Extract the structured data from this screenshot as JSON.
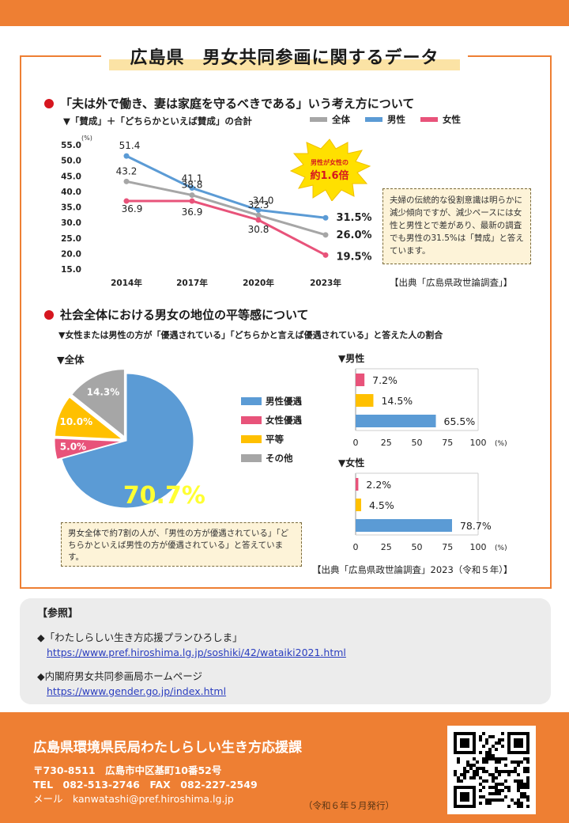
{
  "title": "広島県　男女共同参画に関するデータ",
  "section1": {
    "heading": "「夫は外で働き、妻は家庭を守るべきである」いう考え方について",
    "subheading": "▼「賛成」＋「どちらかといえば賛成」の合計",
    "callout_line1": "男性が女性の",
    "callout_line2": "約1.6倍",
    "note": "夫婦の伝統的な役割意識は明らかに減少傾向ですが、減少ペースには女性と男性とで差があり、最新の調査でも男性の31.5%は「賛成」と答えています。",
    "source": "【出典「広島県政世論調査」】"
  },
  "section2": {
    "heading": "社会全体における男女の地位の平等感について",
    "subheading": "▼女性または男性の方が「優遇されている」「どちらかと言えば優遇されている」と答えた人の割合",
    "pie_label": "▼全体",
    "note": "男女全体で約7割の人が、「男性の方が優遇されている」「どちらかといえば男性の方が優遇されている」と答えています。",
    "source": "【出典「広島県政世論調査」2023（令和５年）】"
  },
  "colors": {
    "accent": "#ee7f33",
    "zentai": "#a6a6a6",
    "male": "#5b9bd5",
    "female": "#e8537a",
    "equal": "#ffc000",
    "other": "#a6a6a6"
  },
  "chart_data": [
    {
      "type": "line",
      "x": [
        "2014年",
        "2017年",
        "2020年",
        "2023年"
      ],
      "series": [
        {
          "name": "全体",
          "values": [
            43.2,
            38.8,
            32.3,
            26.0
          ]
        },
        {
          "name": "男性",
          "values": [
            51.4,
            41.1,
            34.0,
            31.5
          ]
        },
        {
          "name": "女性",
          "values": [
            36.9,
            36.9,
            30.8,
            19.5
          ]
        }
      ],
      "value_labels": [
        [
          "43.2",
          "38.8",
          "32.3",
          "26.0%"
        ],
        [
          "51.4",
          "41.1",
          "34.0",
          "31.5%"
        ],
        [
          "36.9",
          "36.9",
          "30.8",
          "19.5%"
        ]
      ],
      "ylabel": "(%)",
      "ylim": [
        15.0,
        55.0
      ],
      "yticks": [
        "55.0",
        "50.0",
        "45.0",
        "40.0",
        "35.0",
        "30.0",
        "25.0",
        "20.0",
        "15.0"
      ],
      "legend": [
        "全体",
        "男性",
        "女性"
      ],
      "legend_position": "top"
    },
    {
      "type": "pie",
      "categories": [
        "男性優遇",
        "女性優遇",
        "平等",
        "その他"
      ],
      "values": [
        70.7,
        5.0,
        10.0,
        14.3
      ],
      "labels": [
        "70.7%",
        "5.0%",
        "10.0%",
        "14.3%"
      ],
      "legend_position": "right"
    },
    {
      "type": "bar",
      "title": "▼男性",
      "categories": [
        "女性優遇",
        "平等",
        "男性優遇"
      ],
      "values": [
        7.2,
        14.5,
        65.5
      ],
      "labels": [
        "7.2%",
        "14.5%",
        "65.5%"
      ],
      "xticks": [
        "0",
        "25",
        "50",
        "75",
        "100"
      ],
      "xunit": "(%)",
      "xlim": [
        0,
        100
      ]
    },
    {
      "type": "bar",
      "title": "▼女性",
      "categories": [
        "女性優遇",
        "平等",
        "男性優遇"
      ],
      "values": [
        2.2,
        4.5,
        78.7
      ],
      "labels": [
        "2.2%",
        "4.5%",
        "78.7%"
      ],
      "xticks": [
        "0",
        "25",
        "50",
        "75",
        "100"
      ],
      "xunit": "(%)",
      "xlim": [
        0,
        100
      ]
    }
  ],
  "references": {
    "title": "【参照】",
    "items": [
      {
        "label": "◆「わたしらしい生き方応援プランひろしま」",
        "url": "https://www.pref.hiroshima.lg.jp/soshiki/42/wataiki2021.html"
      },
      {
        "label": "◆内閣府男女共同参画局ホームページ",
        "url": "https://www.gender.go.jp/index.html"
      }
    ]
  },
  "footer": {
    "org": "広島県環境県民局わたしらしい生き方応援課",
    "address": "〒730-8511　広島市中区基町10番52号",
    "tel_fax": "TEL　082-513-2746　FAX　082-227-2549",
    "email": "メール　kanwatashi@pref.hiroshima.lg.jp",
    "issued": "（令和６年５月発行）"
  }
}
